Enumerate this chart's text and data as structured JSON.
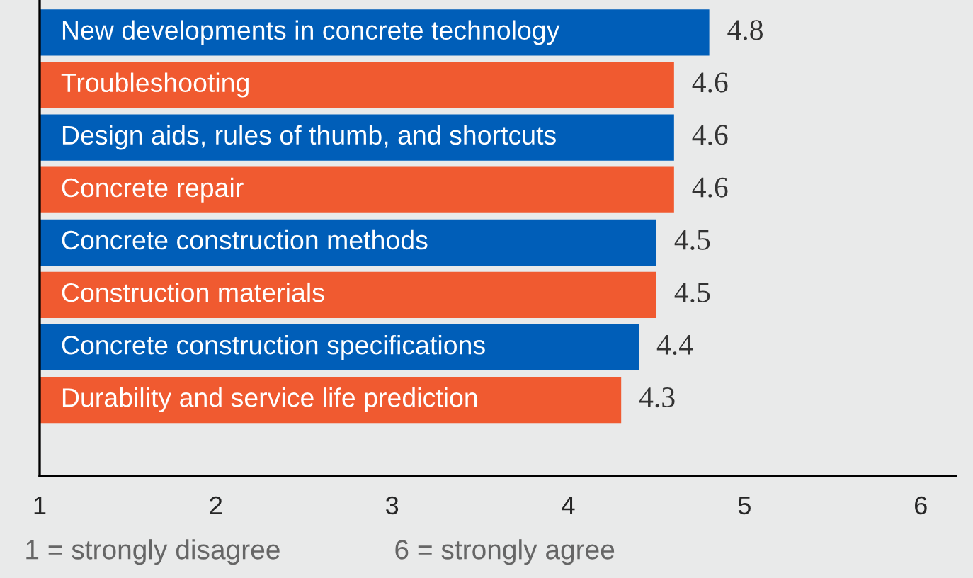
{
  "chart_data": {
    "type": "bar",
    "orientation": "horizontal",
    "categories": [
      "New developments in concrete technology",
      "Troubleshooting",
      "Design aids, rules of thumb, and shortcuts",
      "Concrete repair",
      "Concrete construction methods",
      "Construction materials",
      "Concrete construction specifications",
      "Durability and service life prediction"
    ],
    "values": [
      4.8,
      4.6,
      4.6,
      4.6,
      4.5,
      4.5,
      4.4,
      4.3
    ],
    "colors": [
      "#005eb8",
      "#f05a30",
      "#005eb8",
      "#f05a30",
      "#005eb8",
      "#f05a30",
      "#005eb8",
      "#f05a30"
    ],
    "xlim": [
      1,
      6.2
    ],
    "xticks": [
      1,
      2,
      3,
      4,
      5,
      6
    ],
    "data_labels": true,
    "grid": false,
    "legend": false,
    "annotations": [
      "1 = strongly disagree",
      "6 = strongly agree"
    ]
  }
}
